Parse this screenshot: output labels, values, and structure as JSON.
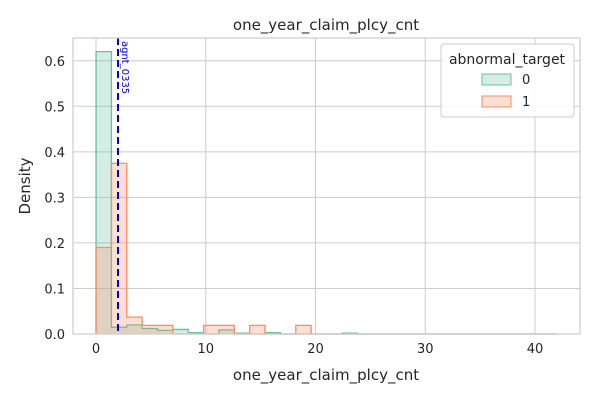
{
  "chart_data": {
    "type": "bar",
    "title": "one_year_claim_plcy_cnt",
    "xlabel": "one_year_claim_plcy_cnt",
    "ylabel": "Density",
    "xlim": [
      -2.1,
      44.1
    ],
    "ylim": [
      0,
      0.65
    ],
    "xticks": [
      "0",
      "10",
      "20",
      "30",
      "40"
    ],
    "yticks": [
      "0.0",
      "0.1",
      "0.2",
      "0.3",
      "0.4",
      "0.5",
      "0.6"
    ],
    "grid": true,
    "bin_width": 1.4,
    "bin_start": 0,
    "legend": {
      "title": "abnormal_target",
      "placement": "top-right"
    },
    "series": [
      {
        "name": "0",
        "color": "#66c2a5",
        "values": [
          0.62,
          0.015,
          0.02,
          0.012,
          0.008,
          0.01,
          0.003,
          0.0,
          0.009,
          0.002,
          0.0,
          0.003,
          0.0,
          0.0,
          0.0,
          0.0,
          0.002,
          0.0,
          0.0,
          0.0,
          0.0,
          0.0,
          0.0,
          0.0,
          0.0,
          0.0,
          0.0,
          0.0,
          0.0,
          0.0
        ]
      },
      {
        "name": "1",
        "color": "#fc8d62",
        "values": [
          0.19,
          0.375,
          0.037,
          0.019,
          0.019,
          0.0,
          0.0,
          0.019,
          0.019,
          0.0,
          0.019,
          0.0,
          0.0,
          0.019,
          0.0,
          0.0,
          0.0,
          0.0,
          0.0,
          0.0,
          0.0,
          0.0,
          0.0,
          0.0,
          0.0,
          0.0,
          0.0,
          0.0,
          0.0,
          0.0
        ]
      }
    ],
    "annotation": {
      "label": "agnt_0335",
      "x": 2.0,
      "color": "#0000cc",
      "style": "dashed"
    }
  }
}
